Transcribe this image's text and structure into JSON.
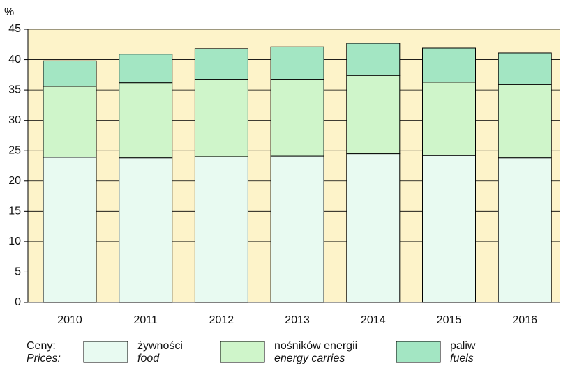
{
  "chart_data": {
    "type": "stacked_bar",
    "y_label": "%",
    "categories": [
      "2010",
      "2011",
      "2012",
      "2013",
      "2014",
      "2015",
      "2016"
    ],
    "series": [
      {
        "name": "żywności",
        "name_en": "food",
        "color": "#e8faf1",
        "values": [
          23.9,
          23.8,
          24.0,
          24.1,
          24.5,
          24.2,
          23.8
        ]
      },
      {
        "name": "nośników energii",
        "name_en": "energy carries",
        "color": "#cff5ca",
        "values": [
          11.7,
          12.4,
          12.7,
          12.6,
          12.9,
          12.1,
          12.1
        ]
      },
      {
        "name": "paliw",
        "name_en": "fuels",
        "color": "#a3e6c3",
        "values": [
          4.2,
          4.7,
          5.1,
          5.4,
          5.3,
          5.6,
          5.2
        ]
      }
    ],
    "legend_title": "Ceny:",
    "legend_title_en": "Prices:",
    "ylim": [
      0,
      45
    ],
    "yticks": [
      0,
      5,
      10,
      15,
      20,
      25,
      30,
      35,
      40,
      45
    ],
    "grid": true,
    "background": "#fdf3c9"
  }
}
